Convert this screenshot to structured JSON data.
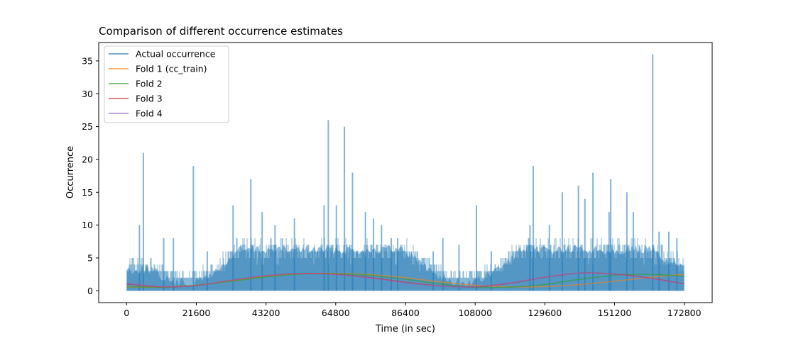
{
  "chart_data": {
    "type": "line",
    "title": "Comparison of different occurrence estimates",
    "xlabel": "Time (in sec)",
    "ylabel": "Occurrence",
    "xlim": [
      -8640,
      181440
    ],
    "ylim": [
      -1.8,
      37.8
    ],
    "xticks": [
      0,
      21600,
      43200,
      64800,
      86400,
      108000,
      129600,
      151200,
      172800
    ],
    "yticks": [
      0,
      5,
      10,
      15,
      20,
      25,
      30,
      35
    ],
    "grid": false,
    "legend_position": "upper-left",
    "series": [
      {
        "name": "Actual occurrence",
        "color": "#1f77b4",
        "style": "dense-spikes",
        "baseline_envelope": {
          "x": [
            0,
            7200,
            14400,
            21600,
            28800,
            34560,
            43200,
            54000,
            64800,
            75600,
            86400,
            93600,
            100800,
            108000,
            115200,
            122400,
            129600,
            140400,
            151200,
            162000,
            172800
          ],
          "y": [
            5,
            5,
            3,
            3,
            5,
            8,
            8,
            8,
            8,
            8,
            8,
            5,
            3,
            3,
            5,
            8,
            8,
            8,
            8,
            8,
            5
          ]
        },
        "peaks": {
          "x": [
            4000,
            5200,
            11500,
            14500,
            20700,
            25000,
            33000,
            38500,
            42000,
            46000,
            52000,
            61200,
            62500,
            65000,
            67500,
            70000,
            74000,
            76500,
            79000,
            82000,
            84000,
            95000,
            98000,
            103000,
            108400,
            113000,
            125000,
            126000,
            131000,
            135000,
            140000,
            142000,
            144500,
            150000,
            149500,
            155000,
            157000,
            163000,
            165000,
            168000,
            170500
          ],
          "y": [
            10,
            21,
            8,
            8,
            19,
            6,
            13,
            17,
            12,
            10,
            11,
            13,
            26,
            13,
            25,
            18,
            12,
            11,
            10,
            8,
            8,
            6,
            8,
            7,
            13,
            6,
            10,
            19,
            10,
            15,
            16,
            14,
            18,
            17,
            12,
            15,
            12,
            36,
            9,
            9,
            8
          ]
        }
      },
      {
        "name": "Fold 1 (cc_train)",
        "color": "#ff7f0e",
        "x": [
          0,
          10800,
          21600,
          32400,
          43200,
          54000,
          64800,
          75600,
          86400,
          97200,
          108000,
          118800,
          129600,
          140400,
          151200,
          162000,
          172800
        ],
        "y": [
          0.55,
          0.6,
          0.85,
          1.5,
          2.2,
          2.6,
          2.65,
          2.45,
          2.0,
          1.35,
          0.85,
          0.6,
          0.65,
          0.95,
          1.45,
          2.05,
          2.5
        ]
      },
      {
        "name": "Fold 2",
        "color": "#2ca02c",
        "x": [
          0,
          10800,
          21600,
          32400,
          43200,
          54000,
          64800,
          75600,
          86400,
          97200,
          108000,
          118800,
          129600,
          140400,
          151200,
          162000,
          172800
        ],
        "y": [
          0.6,
          0.55,
          0.85,
          1.45,
          2.1,
          2.55,
          2.6,
          2.35,
          1.75,
          1.05,
          0.55,
          0.55,
          0.95,
          1.75,
          2.35,
          2.5,
          2.2
        ]
      },
      {
        "name": "Fold 3",
        "color": "#d62728",
        "x": [
          0,
          10800,
          21600,
          32400,
          43200,
          54000,
          64800,
          75600,
          86400,
          97200,
          108000,
          118800,
          129600,
          140400,
          151200,
          162000,
          172800
        ],
        "y": [
          1.05,
          0.6,
          0.8,
          1.6,
          2.3,
          2.65,
          2.5,
          2.0,
          1.3,
          0.75,
          0.6,
          1.15,
          2.05,
          2.7,
          2.55,
          1.95,
          1.05
        ]
      },
      {
        "name": "Fold 4",
        "color": "#9467bd",
        "x": [
          0,
          10800,
          21600,
          32400,
          43200,
          54000,
          64800,
          75600,
          86400,
          97200,
          108000,
          118800,
          129600,
          140400,
          151200,
          162000,
          172800
        ],
        "y": [
          1.15,
          0.65,
          0.8,
          1.6,
          2.3,
          2.6,
          2.45,
          1.9,
          1.2,
          0.7,
          0.65,
          1.2,
          2.1,
          2.7,
          2.5,
          1.85,
          1.0
        ]
      }
    ]
  }
}
